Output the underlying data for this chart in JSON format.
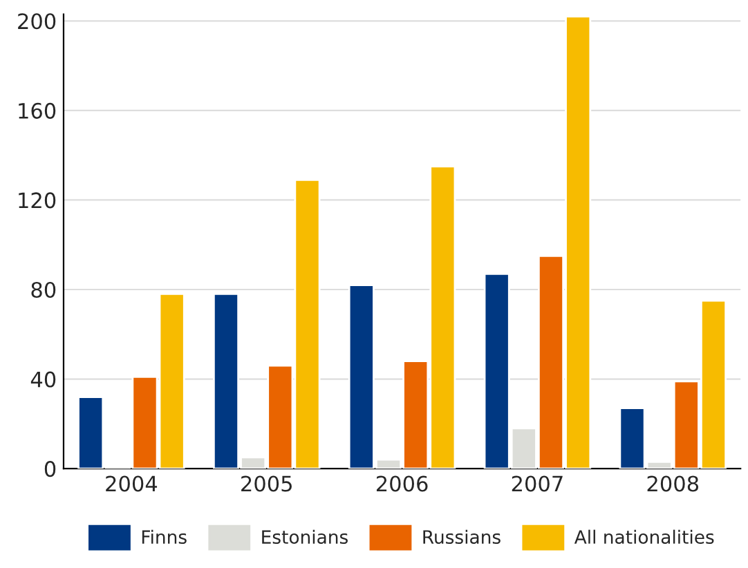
{
  "chart_data": {
    "type": "bar",
    "categories": [
      "2004",
      "2005",
      "2006",
      "2007",
      "2008"
    ],
    "series": [
      {
        "name": "Finns",
        "color": "#003882",
        "values": [
          32,
          78,
          82,
          87,
          27
        ]
      },
      {
        "name": "Estonians",
        "color": "#dcddd8",
        "values": [
          1,
          5,
          4,
          18,
          3
        ]
      },
      {
        "name": "Russians",
        "color": "#e96400",
        "values": [
          41,
          46,
          48,
          95,
          39
        ]
      },
      {
        "name": "All nationalities",
        "color": "#f7bb00",
        "values": [
          78,
          129,
          135,
          202,
          75
        ]
      }
    ],
    "ylim": [
      0,
      203
    ],
    "yticks": [
      0,
      40,
      80,
      120,
      160,
      200
    ],
    "grid": "y",
    "legend": "bottom"
  }
}
